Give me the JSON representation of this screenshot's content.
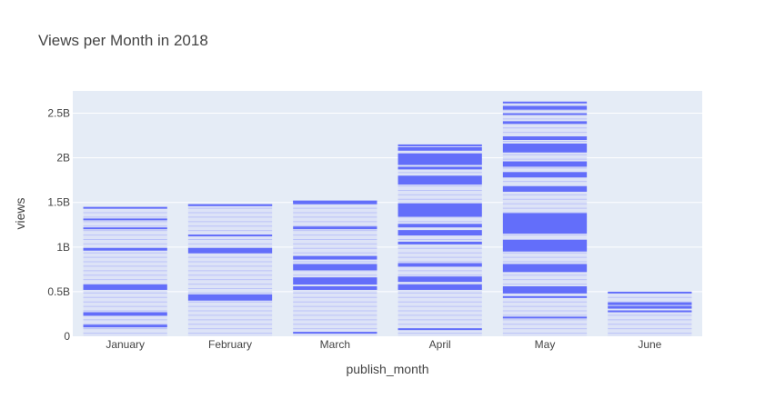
{
  "chart_data": {
    "type": "bar",
    "title": "Views per Month in 2018",
    "xlabel": "publish_month",
    "ylabel": "views",
    "categories": [
      "January",
      "February",
      "March",
      "April",
      "May",
      "June"
    ],
    "values": [
      1.45,
      1.48,
      1.52,
      2.15,
      2.63,
      0.5
    ],
    "value_unit": "billions",
    "ylim": [
      0,
      2.75
    ],
    "y_ticks": [
      0,
      0.5,
      1,
      1.5,
      2,
      2.5
    ],
    "y_tick_labels": [
      "0",
      "0.5B",
      "1B",
      "1.5B",
      "2B",
      "2.5B"
    ],
    "stack_bands": [
      [
        [
          0.1,
          0.13
        ],
        [
          0.23,
          0.27
        ],
        [
          0.52,
          0.58
        ],
        [
          0.96,
          0.99
        ],
        [
          1.2,
          1.22
        ],
        [
          1.31,
          1.32
        ]
      ],
      [
        [
          0.4,
          0.47
        ],
        [
          0.93,
          0.99
        ],
        [
          1.12,
          1.14
        ],
        [
          1.47,
          1.48
        ]
      ],
      [
        [
          0.04,
          0.05
        ],
        [
          0.52,
          0.56
        ],
        [
          0.58,
          0.66
        ],
        [
          0.74,
          0.81
        ],
        [
          0.86,
          0.9
        ],
        [
          1.2,
          1.23
        ],
        [
          1.48,
          1.52
        ]
      ],
      [
        [
          0.07,
          0.09
        ],
        [
          0.52,
          0.58
        ],
        [
          0.61,
          0.67
        ],
        [
          0.78,
          0.82
        ],
        [
          1.03,
          1.06
        ],
        [
          1.13,
          1.19
        ],
        [
          1.22,
          1.26
        ],
        [
          1.34,
          1.49
        ],
        [
          1.7,
          1.8
        ],
        [
          1.87,
          1.9
        ],
        [
          1.92,
          2.05
        ],
        [
          2.08,
          2.12
        ]
      ],
      [
        [
          0.2,
          0.22
        ],
        [
          0.43,
          0.45
        ],
        [
          0.48,
          0.56
        ],
        [
          0.72,
          0.81
        ],
        [
          0.95,
          1.08
        ],
        [
          1.15,
          1.38
        ],
        [
          1.62,
          1.68
        ],
        [
          1.78,
          1.84
        ],
        [
          1.9,
          1.96
        ],
        [
          2.06,
          2.16
        ],
        [
          2.2,
          2.24
        ],
        [
          2.38,
          2.41
        ],
        [
          2.48,
          2.5
        ],
        [
          2.54,
          2.58
        ]
      ],
      [
        [
          0.27,
          0.29
        ],
        [
          0.31,
          0.34
        ],
        [
          0.35,
          0.38
        ]
      ]
    ],
    "grid": true,
    "legend": "none",
    "colors": {
      "bar": "#636efa",
      "plot_bg": "#e5ecf6",
      "grid": "#ffffff",
      "text": "#444444"
    }
  }
}
